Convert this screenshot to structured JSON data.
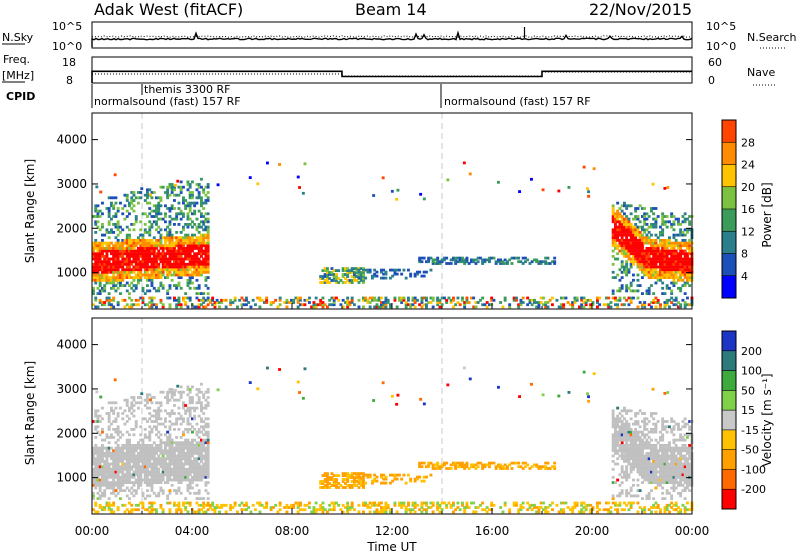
{
  "header": {
    "station": "Adak West (fitACF)",
    "beam": "Beam 14",
    "date": "22/Nov/2015"
  },
  "top_panels": {
    "nsky_label": "N.Sky",
    "nsearch_label": "N.Search",
    "nsky_ticks": [
      "10^5",
      "10^0"
    ],
    "nsearch_ticks": [
      "10^5",
      "10^0"
    ],
    "freq_label_line1": "Freq.",
    "freq_label_line2": "[MHz]",
    "freq_ticks": [
      "18",
      "8"
    ],
    "nave_label": "Nave",
    "nave_ticks": [
      "60",
      "0"
    ],
    "cpid_label": "CPID",
    "cpid_segments": [
      {
        "label": "themis 3300 RF",
        "start_hour": 2.0
      },
      {
        "label": "normalsound (fast) 157 RF",
        "start_hour": 0.0
      },
      {
        "label": "normalsound (fast) 157 RF",
        "start_hour": 14.0
      }
    ],
    "freq_series": [
      {
        "hour": 0.0,
        "value": 12.5
      },
      {
        "hour": 10.0,
        "value": 10.5
      },
      {
        "hour": 18.0,
        "value": 12.5
      },
      {
        "hour": 24.0,
        "value": 12.5
      }
    ]
  },
  "chart_data": [
    {
      "type": "heatmap",
      "title": "",
      "ylabel": "Slant Range [km]",
      "xlabel": "",
      "xlim": [
        0,
        24
      ],
      "ylim": [
        180,
        4600
      ],
      "yticks": [
        1000,
        2000,
        3000,
        4000
      ],
      "colorbar": {
        "label": "Power [dB]",
        "ticks": [
          "4",
          "8",
          "12",
          "16",
          "20",
          "24",
          "28"
        ],
        "range": [
          0,
          30
        ],
        "colors": [
          "#0000ff",
          "#1d4fb8",
          "#2b7f8c",
          "#3a9b5a",
          "#7cc241",
          "#ffc400",
          "#ff8c00",
          "#ff4500",
          "#ff0000"
        ]
      },
      "grid_dashes_hours": [
        2,
        14
      ]
    },
    {
      "type": "heatmap",
      "title": "",
      "ylabel": "Slant Range [km]",
      "xlabel": "Time UT",
      "xlim": [
        0,
        24
      ],
      "ylim": [
        180,
        4600
      ],
      "yticks": [
        1000,
        2000,
        3000,
        4000
      ],
      "xticks": [
        "00:00",
        "04:00",
        "08:00",
        "12:00",
        "16:00",
        "20:00",
        "00:00"
      ],
      "colorbar": {
        "label": "Velocity [m s⁻¹]",
        "ticks": [
          "200",
          "100",
          "50",
          "15",
          "-15",
          "-50",
          "-100",
          "-200"
        ],
        "colors": [
          "#1d35c4",
          "#2c7a7a",
          "#3eaa3e",
          "#7fd14a",
          "#c8c8c8",
          "#ffc200",
          "#ffa000",
          "#ff6a00",
          "#ff0000"
        ]
      },
      "grid_dashes_hours": [
        2,
        14
      ]
    }
  ],
  "colors": {
    "gray_scatter": "#c0c0c0"
  }
}
